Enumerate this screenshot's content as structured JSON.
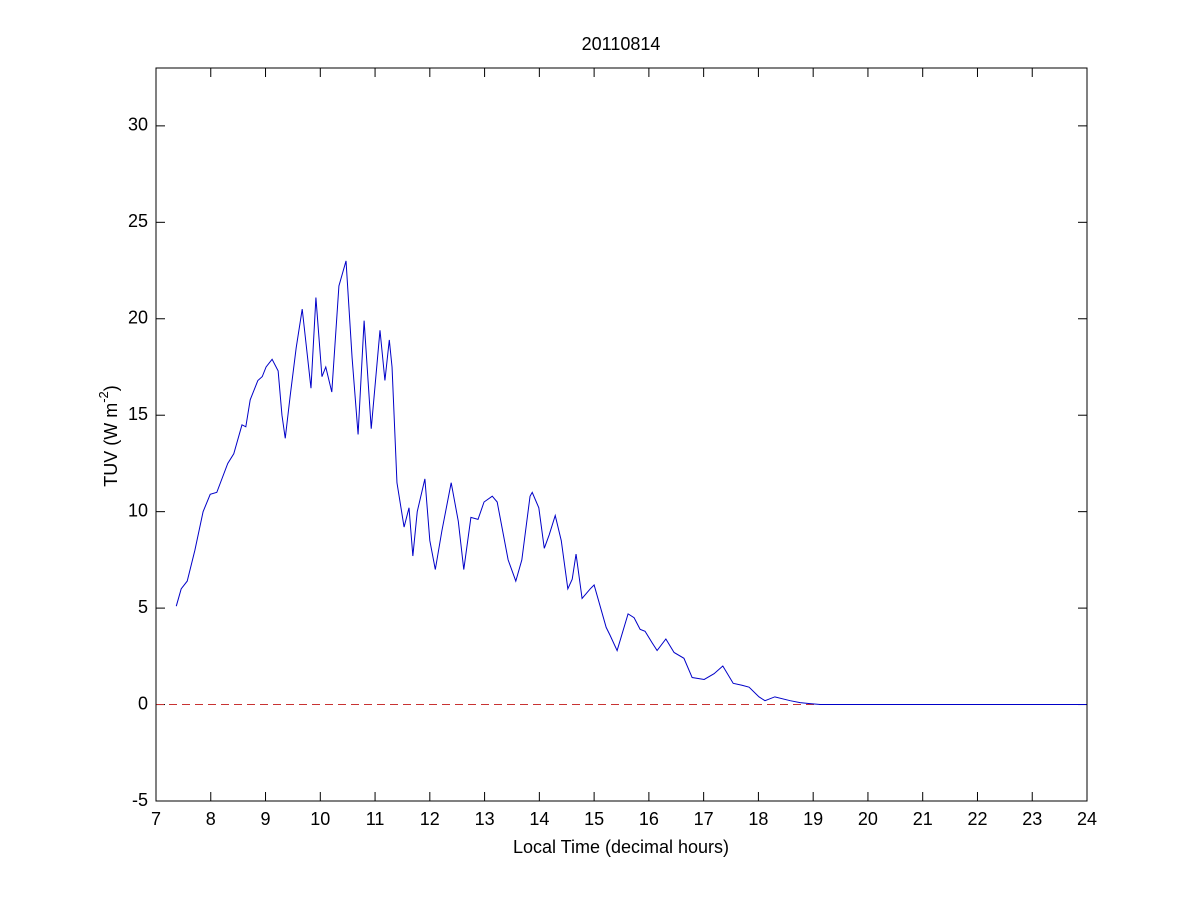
{
  "chart_data": {
    "type": "line",
    "title": "20110814",
    "xlabel": "Local Time (decimal hours)",
    "ylabel": "TUV (W m",
    "ylabel_superscript": "-2",
    "ylabel_suffix": ")",
    "x": [
      7.37,
      7.46,
      7.57,
      7.71,
      7.86,
      7.99,
      8.11,
      8.31,
      8.42,
      8.57,
      8.64,
      8.72,
      8.86,
      8.94,
      9.01,
      9.12,
      9.23,
      9.3,
      9.36,
      9.45,
      9.56,
      9.67,
      9.83,
      9.92,
      10.03,
      10.1,
      10.21,
      10.34,
      10.47,
      10.58,
      10.69,
      10.8,
      10.93,
      11.09,
      11.18,
      11.26,
      11.31,
      11.4,
      11.53,
      11.62,
      11.69,
      11.77,
      11.91,
      12.0,
      12.1,
      12.22,
      12.39,
      12.52,
      12.62,
      12.75,
      12.88,
      12.99,
      13.14,
      13.23,
      13.43,
      13.57,
      13.68,
      13.83,
      13.87,
      13.99,
      14.09,
      14.18,
      14.29,
      14.4,
      14.52,
      14.6,
      14.67,
      14.78,
      14.93,
      15.0,
      15.22,
      15.29,
      15.42,
      15.62,
      15.73,
      15.84,
      15.93,
      16.06,
      16.15,
      16.31,
      16.46,
      16.64,
      16.79,
      17.01,
      17.19,
      17.35,
      17.54,
      17.7,
      17.83,
      18.01,
      18.12,
      18.3,
      18.58,
      18.76,
      18.94,
      19.13,
      24
    ],
    "values": [
      5.1,
      6.0,
      6.4,
      8.0,
      10.0,
      10.9,
      11.0,
      12.5,
      13.0,
      14.5,
      14.4,
      15.8,
      16.8,
      17.0,
      17.5,
      17.9,
      17.3,
      15.0,
      13.8,
      16.0,
      18.5,
      20.5,
      16.4,
      21.1,
      17.0,
      17.5,
      16.2,
      21.7,
      23.0,
      18.0,
      14.0,
      19.9,
      14.3,
      19.4,
      16.8,
      18.9,
      17.5,
      11.5,
      9.2,
      10.2,
      7.7,
      10.0,
      11.7,
      8.5,
      7.0,
      9.0,
      11.5,
      9.5,
      7.0,
      9.7,
      9.6,
      10.5,
      10.8,
      10.5,
      7.5,
      6.4,
      7.5,
      10.8,
      11.0,
      10.2,
      8.1,
      8.8,
      9.8,
      8.5,
      6.0,
      6.5,
      7.8,
      5.5,
      6.0,
      6.2,
      4.0,
      3.6,
      2.8,
      4.7,
      4.5,
      3.9,
      3.8,
      3.2,
      2.8,
      3.4,
      2.7,
      2.4,
      1.4,
      1.3,
      1.6,
      2.0,
      1.1,
      1.0,
      0.9,
      0.4,
      0.2,
      0.4,
      0.2,
      0.1,
      0.05,
      0,
      0
    ],
    "color": "#0000c8",
    "reference_line": {
      "y": 0,
      "color": "#c83232",
      "style": "dashed"
    },
    "xlim": [
      7,
      24
    ],
    "xticks": [
      7,
      8,
      9,
      10,
      11,
      12,
      13,
      14,
      15,
      16,
      17,
      18,
      19,
      20,
      21,
      22,
      23,
      24
    ],
    "ylim": [
      -5,
      33
    ],
    "yticks": [
      -5,
      0,
      5,
      10,
      15,
      20,
      25,
      30
    ],
    "grid": false
  }
}
